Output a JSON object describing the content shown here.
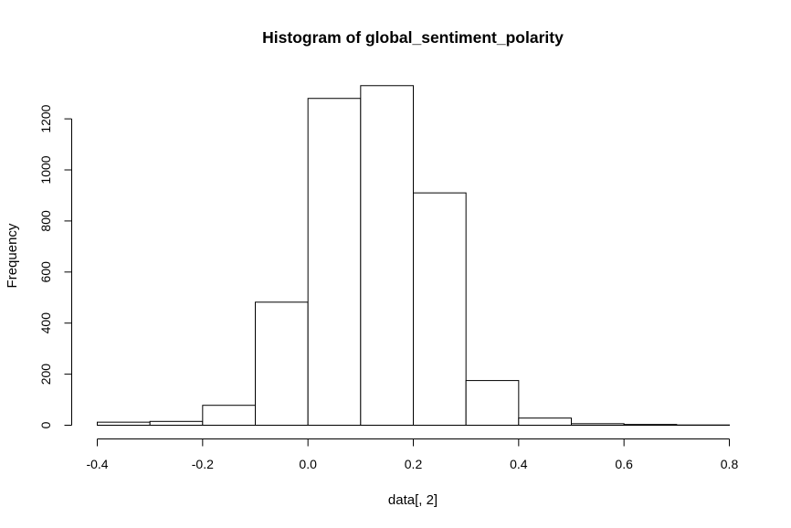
{
  "chart_data": {
    "type": "bar",
    "title": "Histogram of global_sentiment_polarity",
    "xlabel": "data[, 2]",
    "ylabel": "Frequency",
    "bins": [
      {
        "from": -0.4,
        "to": -0.3,
        "count": 12
      },
      {
        "from": -0.3,
        "to": -0.2,
        "count": 15
      },
      {
        "from": -0.2,
        "to": -0.1,
        "count": 78
      },
      {
        "from": -0.1,
        "to": 0.0,
        "count": 482
      },
      {
        "from": 0.0,
        "to": 0.1,
        "count": 1280
      },
      {
        "from": 0.1,
        "to": 0.2,
        "count": 1330
      },
      {
        "from": 0.2,
        "to": 0.3,
        "count": 910
      },
      {
        "from": 0.3,
        "to": 0.4,
        "count": 175
      },
      {
        "from": 0.4,
        "to": 0.5,
        "count": 28
      },
      {
        "from": 0.5,
        "to": 0.6,
        "count": 6
      },
      {
        "from": 0.6,
        "to": 0.7,
        "count": 3
      },
      {
        "from": 0.7,
        "to": 0.8,
        "count": 1
      }
    ],
    "xlim": [
      -0.4,
      0.8
    ],
    "ylim": [
      0,
      1330
    ],
    "xticks": [
      "-0.4",
      "-0.2",
      "0.0",
      "0.2",
      "0.4",
      "0.6",
      "0.8"
    ],
    "yticks": [
      "0",
      "200",
      "400",
      "600",
      "800",
      "1000",
      "1200"
    ],
    "grid": false,
    "colors": {
      "bar_fill": "#ffffff",
      "bar_stroke": "#000000"
    }
  }
}
